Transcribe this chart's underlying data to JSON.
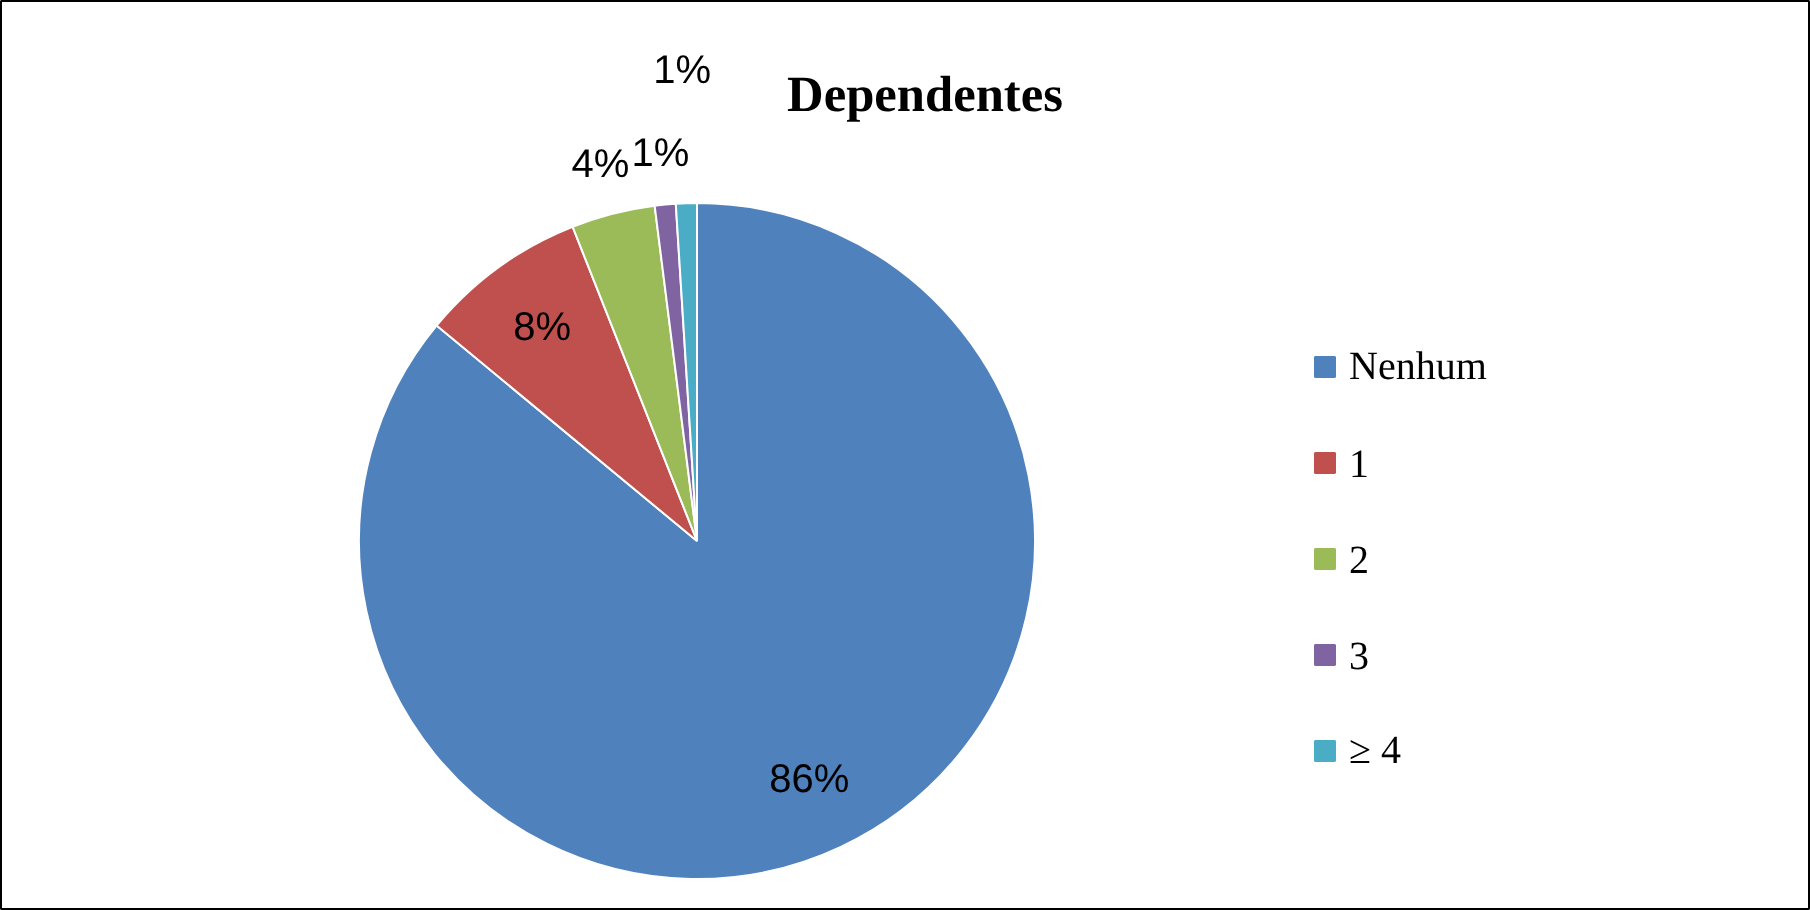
{
  "chart_data": {
    "type": "pie",
    "title": "Dependentes",
    "categories": [
      "Nenhum",
      "1",
      "2",
      "3",
      "≥ 4"
    ],
    "values": [
      86,
      8,
      4,
      1,
      1
    ],
    "colors": [
      "#4f81bd",
      "#c0504d",
      "#9bbb59",
      "#8064a2",
      "#4bacc6"
    ],
    "value_labels": [
      "86%",
      "8%",
      "4%",
      "1%",
      "1%"
    ],
    "legend": "right"
  }
}
